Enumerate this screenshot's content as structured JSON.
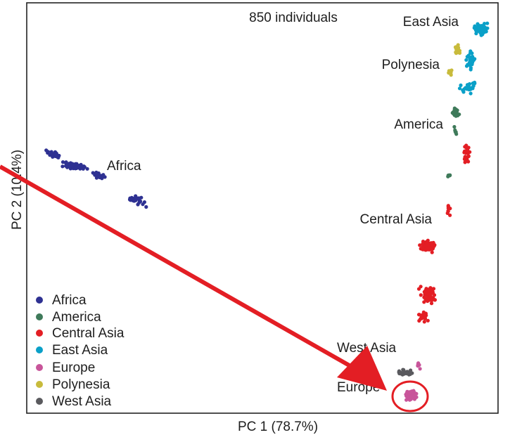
{
  "chart_data": {
    "type": "scatter",
    "title": "850 individuals",
    "xlabel": "PC 1 (78.7%)",
    "ylabel": "PC 2 (10.4%)",
    "legend_position": "bottom-left",
    "grid": false,
    "series": [
      {
        "name": "Africa",
        "color": "#2e3192"
      },
      {
        "name": "America",
        "color": "#3f7a5a"
      },
      {
        "name": "Central Asia",
        "color": "#e31e24"
      },
      {
        "name": "East Asia",
        "color": "#0aa0c8"
      },
      {
        "name": "Europe",
        "color": "#c8559a"
      },
      {
        "name": "Polynesia",
        "color": "#c8bb3c"
      },
      {
        "name": "West Asia",
        "color": "#5a5a5e"
      }
    ],
    "region_labels": [
      {
        "text": "East Asia",
        "series": "East Asia"
      },
      {
        "text": "Polynesia",
        "series": "Polynesia"
      },
      {
        "text": "America",
        "series": "America"
      },
      {
        "text": "Africa",
        "series": "Africa"
      },
      {
        "text": "Central Asia",
        "series": "Central Asia"
      },
      {
        "text": "West Asia",
        "series": "West Asia"
      },
      {
        "text": "Europe",
        "series": "Europe"
      }
    ]
  },
  "annotations": {
    "arrow_color": "#e31e24",
    "circle_color": "#e31e24",
    "target": "Europe"
  }
}
